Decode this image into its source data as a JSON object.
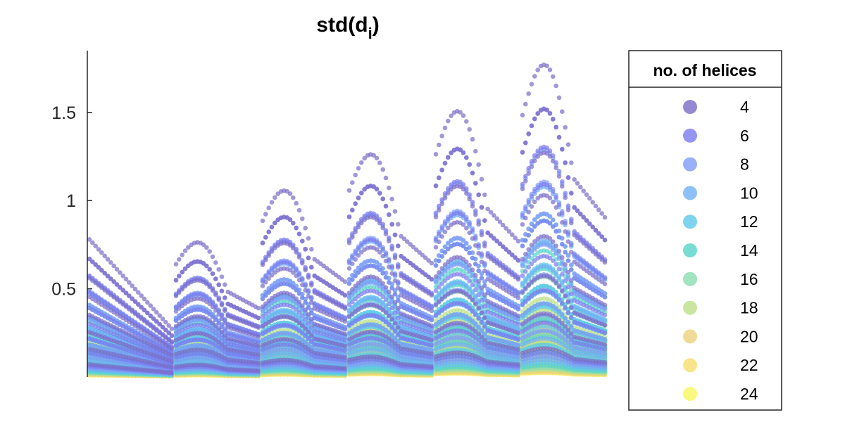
{
  "chart_data": {
    "type": "scatter",
    "title": "std(d",
    "title_subscript": "i",
    "title_close": ")",
    "xlabel": "",
    "ylabel": "",
    "ylim": [
      0,
      1.85
    ],
    "y_ticks": [
      0.5,
      1,
      1.5
    ],
    "y_tick_labels": [
      "0.5",
      "1",
      "1.5"
    ],
    "grid": false,
    "legend_placement": "right",
    "legend_title": "no. of helices",
    "groups": 6,
    "group_peak_values": [
      0.78,
      1.08,
      1.29,
      1.54,
      1.81
    ],
    "series": [
      {
        "name": "4",
        "color": "#7b6cc7"
      },
      {
        "name": "6",
        "color": "#7a7af0"
      },
      {
        "name": "8",
        "color": "#7f9bf6"
      },
      {
        "name": "10",
        "color": "#6fb0f5"
      },
      {
        "name": "12",
        "color": "#5ec9ea"
      },
      {
        "name": "14",
        "color": "#55d4c8"
      },
      {
        "name": "16",
        "color": "#88ddb0"
      },
      {
        "name": "18",
        "color": "#bce08a"
      },
      {
        "name": "20",
        "color": "#ecd17a"
      },
      {
        "name": "22",
        "color": "#f6dd6c"
      },
      {
        "name": "24",
        "color": "#f7f75c"
      }
    ]
  }
}
